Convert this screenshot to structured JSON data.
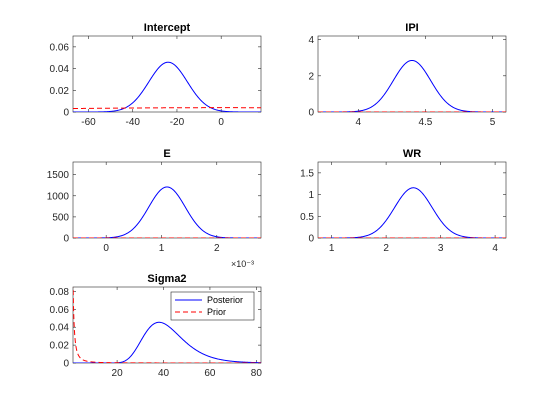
{
  "colors": {
    "posterior": "#0000ff",
    "prior": "#ff0000",
    "axes": "#262626",
    "background": "#ffffff"
  },
  "legend": {
    "posterior_label": "Posterior",
    "prior_label": "Prior",
    "placement": "top-right of Sigma2 panel"
  },
  "chart_data": [
    {
      "type": "line",
      "title": "Intercept",
      "xlim": [
        -67,
        18
      ],
      "ylim": [
        0,
        0.07
      ],
      "xticks": [
        -60,
        -40,
        -20,
        0
      ],
      "xtick_labels": [
        "-60",
        "-40",
        "-20",
        "0"
      ],
      "yticks": [
        0,
        0.02,
        0.04,
        0.06
      ],
      "ytick_labels": [
        "0",
        "0.02",
        "0.04",
        "0.06"
      ],
      "series": [
        {
          "role": "posterior",
          "style": "solid",
          "shape": "normal",
          "mean": -24,
          "sd": 8.7
        },
        {
          "role": "prior",
          "style": "dashed",
          "shape": "normal",
          "mean": 0,
          "sd": 100
        }
      ]
    },
    {
      "type": "line",
      "title": "IPI",
      "xlim": [
        3.7,
        5.1
      ],
      "ylim": [
        0,
        4.2
      ],
      "xticks": [
        4,
        4.5,
        5
      ],
      "xtick_labels": [
        "4",
        "4.5",
        "5"
      ],
      "yticks": [
        0,
        2,
        4
      ],
      "ytick_labels": [
        "0",
        "2",
        "4"
      ],
      "series": [
        {
          "role": "posterior",
          "style": "solid",
          "shape": "normal",
          "mean": 4.4,
          "sd": 0.14
        },
        {
          "role": "prior",
          "style": "dashed",
          "shape": "flat",
          "value": 0
        }
      ]
    },
    {
      "type": "line",
      "title": "E",
      "xlim": [
        -0.0006,
        0.0028
      ],
      "ylim": [
        0,
        1800
      ],
      "xticks": [
        0,
        0.001,
        0.002
      ],
      "xtick_labels": [
        "0",
        "1",
        "2"
      ],
      "yticks": [
        0,
        500,
        1000,
        1500
      ],
      "ytick_labels": [
        "0",
        "500",
        "1000",
        "1500"
      ],
      "exponent_label": "×10⁻³",
      "series": [
        {
          "role": "posterior",
          "style": "solid",
          "shape": "normal",
          "mean": 0.0011,
          "sd": 0.00033
        },
        {
          "role": "prior",
          "style": "dashed",
          "shape": "flat",
          "value": 0
        }
      ]
    },
    {
      "type": "line",
      "title": "WR",
      "xlim": [
        0.75,
        4.2
      ],
      "ylim": [
        0,
        1.75
      ],
      "xticks": [
        1,
        2,
        3,
        4
      ],
      "xtick_labels": [
        "1",
        "2",
        "3",
        "4"
      ],
      "yticks": [
        0,
        0.5,
        1,
        1.5
      ],
      "ytick_labels": [
        "0",
        "0.5",
        "1",
        "1.5"
      ],
      "series": [
        {
          "role": "posterior",
          "style": "solid",
          "shape": "normal",
          "mean": 2.5,
          "sd": 0.345
        },
        {
          "role": "prior",
          "style": "dashed",
          "shape": "flat",
          "value": 0
        }
      ]
    },
    {
      "type": "line",
      "title": "Sigma2",
      "xlim": [
        1,
        82
      ],
      "ylim": [
        0,
        0.085
      ],
      "xticks": [
        20,
        40,
        60,
        80
      ],
      "xtick_labels": [
        "20",
        "40",
        "60",
        "80"
      ],
      "yticks": [
        0,
        0.02,
        0.04,
        0.06,
        0.08
      ],
      "ytick_labels": [
        "0",
        "0.02",
        "0.04",
        "0.06",
        "0.08"
      ],
      "legend": true,
      "series": [
        {
          "role": "posterior",
          "style": "solid",
          "shape": "invgamma",
          "alpha": 20,
          "beta": 800
        },
        {
          "role": "prior",
          "style": "dashed",
          "shape": "invgamma",
          "alpha": 1.0,
          "beta": 0.1
        }
      ]
    }
  ]
}
